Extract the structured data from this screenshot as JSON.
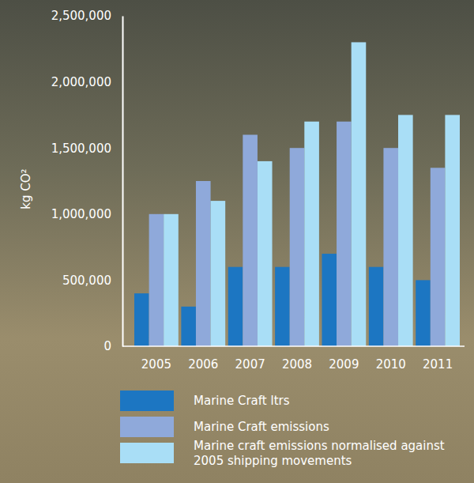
{
  "chart_data": {
    "type": "bar",
    "y_label": "kg CO²",
    "categories": [
      "2005",
      "2006",
      "2007",
      "2008",
      "2009",
      "2010",
      "2011"
    ],
    "series": [
      {
        "name": "Marine Craft ltrs",
        "color": "#1c76c2",
        "values": [
          400000,
          300000,
          600000,
          600000,
          700000,
          600000,
          500000
        ]
      },
      {
        "name": "Marine Craft emissions",
        "color": "#8fa9da",
        "values": [
          1000000,
          1250000,
          1600000,
          1500000,
          1700000,
          1500000,
          1350000
        ]
      },
      {
        "name": "Marine craft emissions normalised against 2005 shipping movements",
        "color": "#a9def6",
        "values": [
          1000000,
          1100000,
          1400000,
          1700000,
          2300000,
          1750000,
          1750000
        ]
      }
    ],
    "ylim": [
      0,
      2500000
    ],
    "yticks": [
      0,
      {
        "value": 500000,
        "label": "500,000"
      },
      {
        "value": 1000000,
        "label": "1,000,000"
      },
      {
        "value": 1500000,
        "label": "1,500,000"
      },
      {
        "value": 2000000,
        "label": "2,000,000"
      },
      {
        "value": 2500000,
        "label": "2,500,000"
      }
    ],
    "grid": false,
    "legend": "bottom"
  }
}
